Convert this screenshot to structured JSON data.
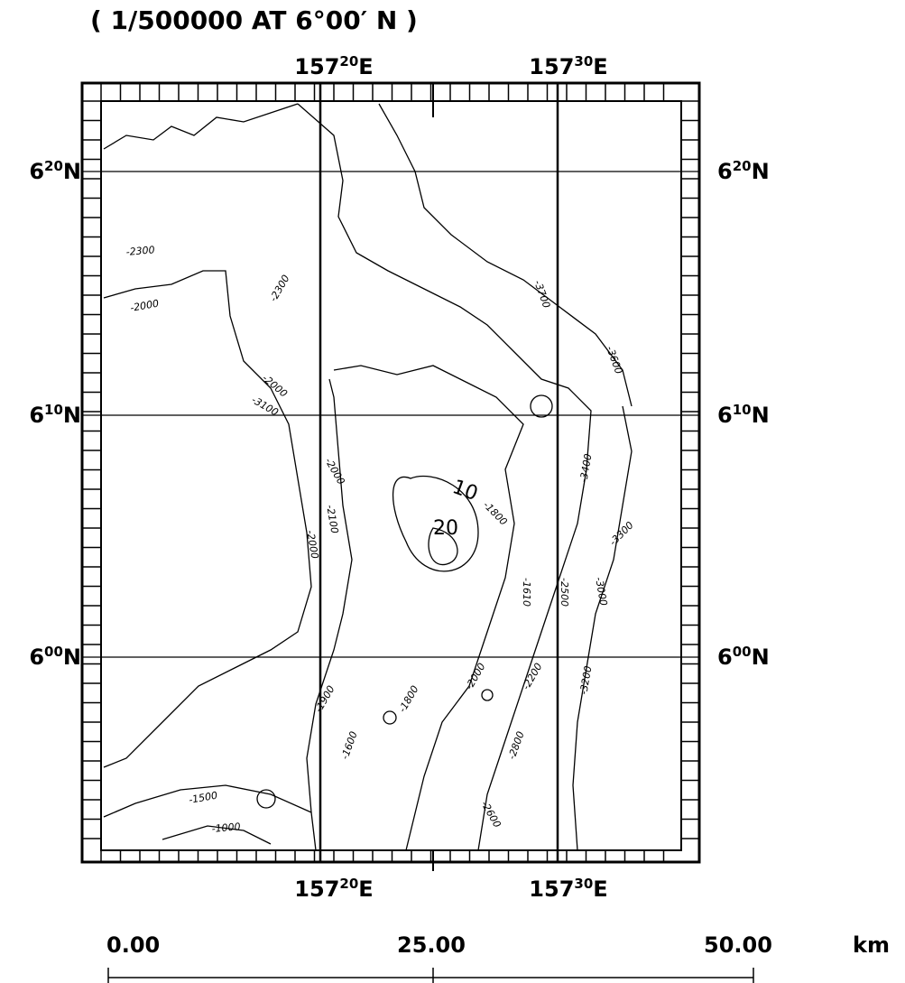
{
  "header": {
    "title": "( 1/500000 AT  6°00′ N )"
  },
  "map": {
    "top_labels": [
      {
        "deg": "157",
        "min": "20",
        "hemi": "E"
      },
      {
        "deg": "157",
        "min": "30",
        "hemi": "E"
      }
    ],
    "bottom_labels": [
      {
        "deg": "157",
        "min": "20",
        "hemi": "E"
      },
      {
        "deg": "157",
        "min": "30",
        "hemi": "E"
      }
    ],
    "left_labels": [
      {
        "deg": "6",
        "min": "20",
        "hemi": "N"
      },
      {
        "deg": "6",
        "min": "10",
        "hemi": "N"
      },
      {
        "deg": "6",
        "min": "00",
        "hemi": "N"
      }
    ],
    "right_labels": [
      {
        "deg": "6",
        "min": "20",
        "hemi": "N"
      },
      {
        "deg": "6",
        "min": "10",
        "hemi": "N"
      },
      {
        "deg": "6",
        "min": "00",
        "hemi": "N"
      }
    ],
    "contour_labels": [
      "-2300",
      "-2000",
      "-2300",
      "-2000",
      "-3100",
      "-2000",
      "10",
      "-1800",
      "20",
      "-2100",
      "-2000",
      "-1610",
      "-2500",
      "-3000",
      "-3400",
      "-3300",
      "-3700",
      "-3600",
      "-1900",
      "-1800",
      "-2000",
      "-2200",
      "-3200",
      "-1600",
      "-2800",
      "-2600",
      "-1500",
      "-1000"
    ]
  },
  "scale": {
    "ticks": [
      "0.00",
      "25.00",
      "50.00"
    ],
    "unit": "km"
  }
}
